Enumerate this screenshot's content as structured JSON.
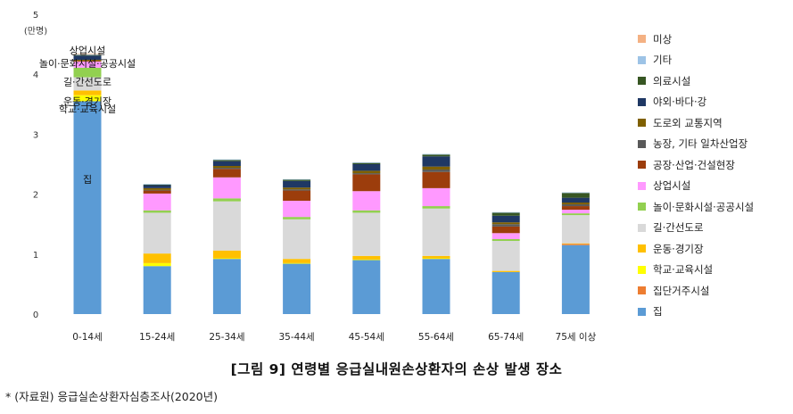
{
  "caption": "[그림 9] 연령별 응급실내원손상환자의 손상 발생 장소",
  "source": "* (자료원) 응급실손상환자심층조사(2020년)",
  "chart_data": {
    "type": "bar",
    "stacked": true,
    "ylabel": "(만명)",
    "ylim": [
      0,
      5
    ],
    "yticks": [
      "0",
      "1",
      "2",
      "3",
      "4",
      "5"
    ],
    "grid": false,
    "legend_position": "right",
    "categories": [
      "0-14세",
      "15-24세",
      "25-34세",
      "35-44세",
      "45-54세",
      "55-64세",
      "65-74세",
      "75세 이상"
    ],
    "series": [
      {
        "name": "집",
        "color": "#5b9bd5",
        "values": [
          3.55,
          0.8,
          0.92,
          0.84,
          0.9,
          0.92,
          0.7,
          1.15
        ]
      },
      {
        "name": "집단거주시설",
        "color": "#ed7d31",
        "values": [
          0.0,
          0.0,
          0.0,
          0.0,
          0.0,
          0.0,
          0.0,
          0.02
        ]
      },
      {
        "name": "학교·교육시설",
        "color": "#ffff00",
        "values": [
          0.1,
          0.05,
          0.01,
          0.01,
          0.01,
          0.01,
          0.0,
          0.0
        ]
      },
      {
        "name": "운동·경기장",
        "color": "#ffc000",
        "values": [
          0.08,
          0.16,
          0.13,
          0.07,
          0.06,
          0.04,
          0.02,
          0.01
        ]
      },
      {
        "name": "길·간선도로",
        "color": "#d9d9d9",
        "values": [
          0.22,
          0.68,
          0.82,
          0.66,
          0.72,
          0.79,
          0.5,
          0.47
        ]
      },
      {
        "name": "놀이·문화시설·공공시설",
        "color": "#92d050",
        "values": [
          0.16,
          0.04,
          0.05,
          0.04,
          0.04,
          0.04,
          0.03,
          0.03
        ]
      },
      {
        "name": "상업시설",
        "color": "#ff99ff",
        "values": [
          0.1,
          0.28,
          0.35,
          0.27,
          0.32,
          0.3,
          0.1,
          0.06
        ]
      },
      {
        "name": "공장·산업·건설현장",
        "color": "#9c3d0c",
        "values": [
          0.01,
          0.05,
          0.14,
          0.17,
          0.28,
          0.27,
          0.11,
          0.06
        ]
      },
      {
        "name": "농장, 기타 일차산업장",
        "color": "#595959",
        "values": [
          0.0,
          0.01,
          0.02,
          0.02,
          0.02,
          0.04,
          0.04,
          0.03
        ]
      },
      {
        "name": "도로외 교통지역",
        "color": "#7f6000",
        "values": [
          0.02,
          0.03,
          0.03,
          0.03,
          0.04,
          0.05,
          0.03,
          0.03
        ]
      },
      {
        "name": "야외·바다·강",
        "color": "#1f3864",
        "values": [
          0.07,
          0.05,
          0.08,
          0.11,
          0.11,
          0.17,
          0.11,
          0.08
        ]
      },
      {
        "name": "의료시설",
        "color": "#375623",
        "values": [
          0.01,
          0.01,
          0.02,
          0.02,
          0.02,
          0.03,
          0.05,
          0.08
        ]
      },
      {
        "name": "기타",
        "color": "#9dc3e6",
        "values": [
          0.01,
          0.01,
          0.01,
          0.01,
          0.01,
          0.01,
          0.01,
          0.01
        ]
      },
      {
        "name": "미상",
        "color": "#f4b183",
        "values": [
          0.01,
          0.0,
          0.0,
          0.0,
          0.0,
          0.0,
          0.0,
          0.0
        ]
      }
    ],
    "annotations": [
      {
        "text": "집",
        "category": "0-14세",
        "y": 2.25
      },
      {
        "text": "학교·교육시설",
        "category": "0-14세",
        "y": 3.42
      },
      {
        "text": "운동·경기장",
        "category": "0-14세",
        "y": 3.55
      },
      {
        "text": "길·간선도로",
        "category": "0-14세",
        "y": 3.88
      },
      {
        "text": "놀이·문화시설·공공시설",
        "category": "0-14세",
        "y": 4.18
      },
      {
        "text": "상업시설",
        "category": "0-14세",
        "y": 4.4
      }
    ]
  }
}
